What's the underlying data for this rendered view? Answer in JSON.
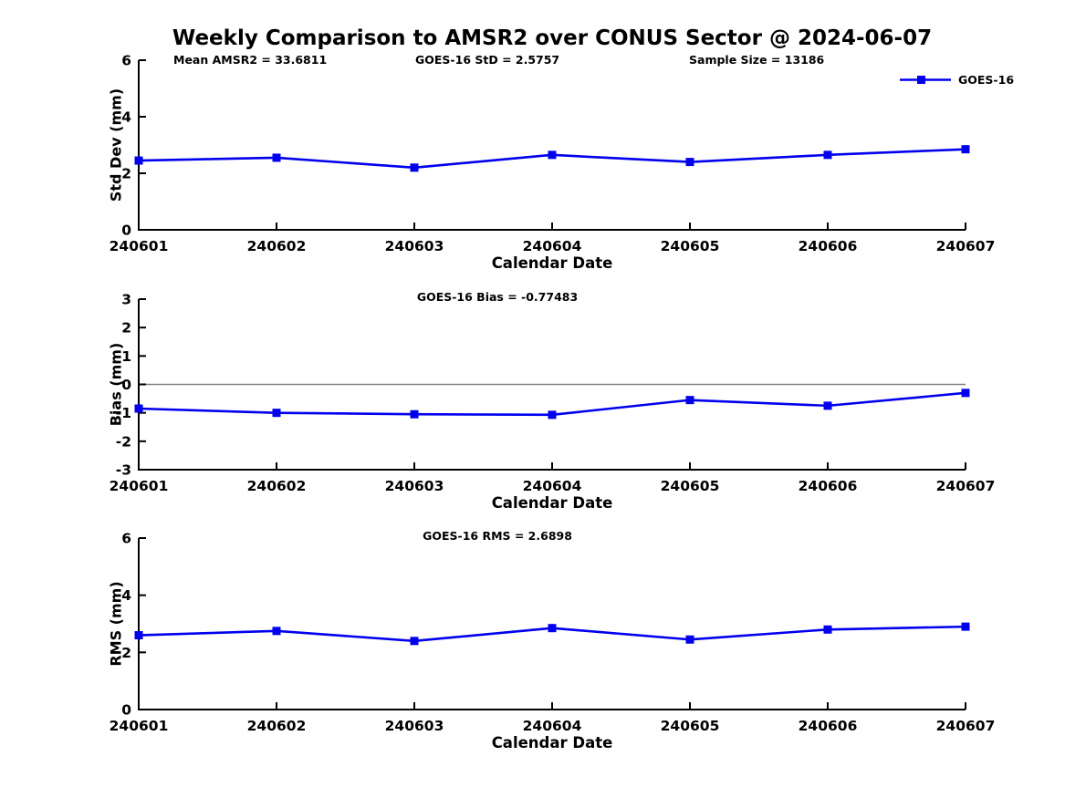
{
  "figure": {
    "title": "Weekly Comparison to AMSR2 over CONUS Sector @ 2024-06-07",
    "header_annotations": [
      {
        "text": "Mean AMSR2 = 33.6811"
      },
      {
        "text": "GOES-16 StD = 2.5757"
      },
      {
        "text": "Sample Size = 13186"
      }
    ],
    "legend": {
      "label": "GOES-16"
    }
  },
  "colors": {
    "series": "#0000EE",
    "axis": "#000000",
    "text": "#000000",
    "zero_line": "#808080",
    "background": "#FFFFFF"
  },
  "chart_data": [
    {
      "type": "line",
      "title": "",
      "categories": [
        "240601",
        "240602",
        "240603",
        "240604",
        "240605",
        "240606",
        "240607"
      ],
      "series": [
        {
          "name": "GOES-16",
          "values": [
            2.45,
            2.55,
            2.2,
            2.65,
            2.4,
            2.65,
            2.85
          ]
        }
      ],
      "xlabel": "Calendar Date",
      "ylabel": "Std Dev (mm)",
      "ylim": [
        0,
        6
      ],
      "yticks": [
        0,
        2,
        4,
        6
      ],
      "grid": false,
      "zero_line": false,
      "marker": "square",
      "legend_position": "top-right-outside"
    },
    {
      "type": "line",
      "title": "GOES-16 Bias  = -0.77483",
      "categories": [
        "240601",
        "240602",
        "240603",
        "240604",
        "240605",
        "240606",
        "240607"
      ],
      "series": [
        {
          "name": "GOES-16",
          "values": [
            -0.85,
            -1.0,
            -1.05,
            -1.07,
            -0.55,
            -0.75,
            -0.3
          ]
        }
      ],
      "xlabel": "Calendar Date",
      "ylabel": "Bias (mm)",
      "ylim": [
        -3,
        3
      ],
      "yticks": [
        -3,
        -2,
        -1,
        0,
        1,
        2,
        3
      ],
      "grid": false,
      "zero_line": true,
      "marker": "square",
      "legend_position": "none"
    },
    {
      "type": "line",
      "title": "GOES-16 RMS = 2.6898",
      "categories": [
        "240601",
        "240602",
        "240603",
        "240604",
        "240605",
        "240606",
        "240607"
      ],
      "series": [
        {
          "name": "GOES-16",
          "values": [
            2.6,
            2.75,
            2.4,
            2.85,
            2.45,
            2.8,
            2.9
          ]
        }
      ],
      "xlabel": "Calendar Date",
      "ylabel": "RMS (mm)",
      "ylim": [
        0,
        6
      ],
      "yticks": [
        0,
        2,
        4,
        6
      ],
      "grid": false,
      "zero_line": false,
      "marker": "square",
      "legend_position": "none"
    }
  ]
}
